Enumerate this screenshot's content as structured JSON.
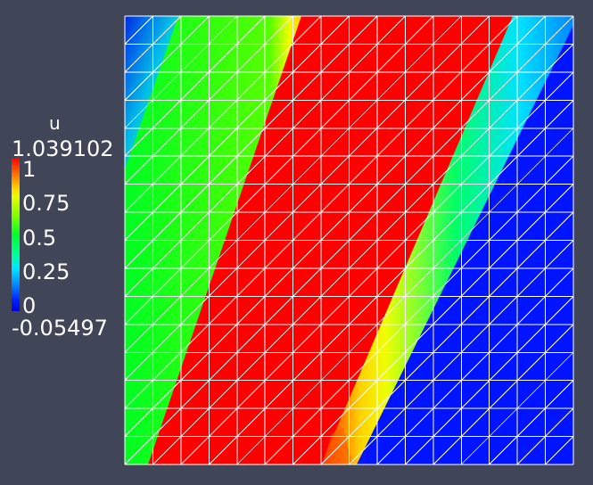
{
  "colormap": {
    "title": "u",
    "max_label": "1.039102",
    "min_label": "-0.05497",
    "ticks": [
      "1",
      "0.75",
      "0.5",
      "0.25",
      "0"
    ]
  },
  "mesh": {
    "columns": 16,
    "rows": 16,
    "line_color": "#ffffff"
  },
  "colors": {
    "background": "#404558",
    "red": "#ff0000",
    "yellow": "#f0ff00",
    "green": "#11ff00",
    "cyan": "#00e0ff",
    "blue": "#0014ff"
  }
}
